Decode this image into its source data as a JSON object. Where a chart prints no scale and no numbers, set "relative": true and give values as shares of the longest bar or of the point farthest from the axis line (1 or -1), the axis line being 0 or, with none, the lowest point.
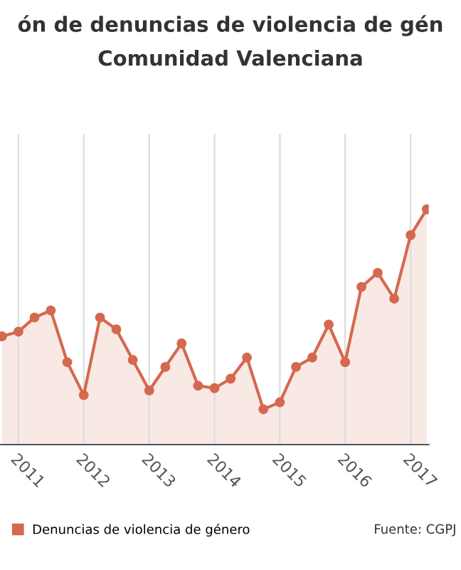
{
  "chart_data": {
    "type": "area",
    "title": "ón de denuncias de violencia de gén",
    "subtitle": "Comunidad Valenciana",
    "relative": true,
    "x": [
      "2010-10",
      "2011-01",
      "2011-04",
      "2011-07",
      "2011-10",
      "2012-01",
      "2012-04",
      "2012-07",
      "2012-10",
      "2013-01",
      "2013-04",
      "2013-07",
      "2013-10",
      "2014-01",
      "2014-04",
      "2014-07",
      "2014-10",
      "2015-01",
      "2015-04",
      "2015-07",
      "2015-10",
      "2016-01",
      "2016-04",
      "2016-07",
      "2016-10",
      "2017-01",
      "2017-04"
    ],
    "series": [
      {
        "name": "Denuncias de violencia de género",
        "color": "#d4694f",
        "values": [
          0.46,
          0.48,
          0.54,
          0.57,
          0.35,
          0.21,
          0.54,
          0.49,
          0.36,
          0.23,
          0.33,
          0.43,
          0.25,
          0.24,
          0.28,
          0.37,
          0.15,
          0.18,
          0.33,
          0.37,
          0.51,
          0.35,
          0.67,
          0.73,
          0.62,
          0.89,
          1.0
        ]
      }
    ],
    "xlim": [
      "2010-09-20",
      "2017-04-12"
    ],
    "xticks": [
      "2011",
      "2012",
      "2013",
      "2014",
      "2015",
      "2016",
      "2017"
    ],
    "marker": "circle",
    "grid": "x",
    "legend": "bottom left",
    "annotations": [
      "Fuente: CGPJ"
    ]
  }
}
